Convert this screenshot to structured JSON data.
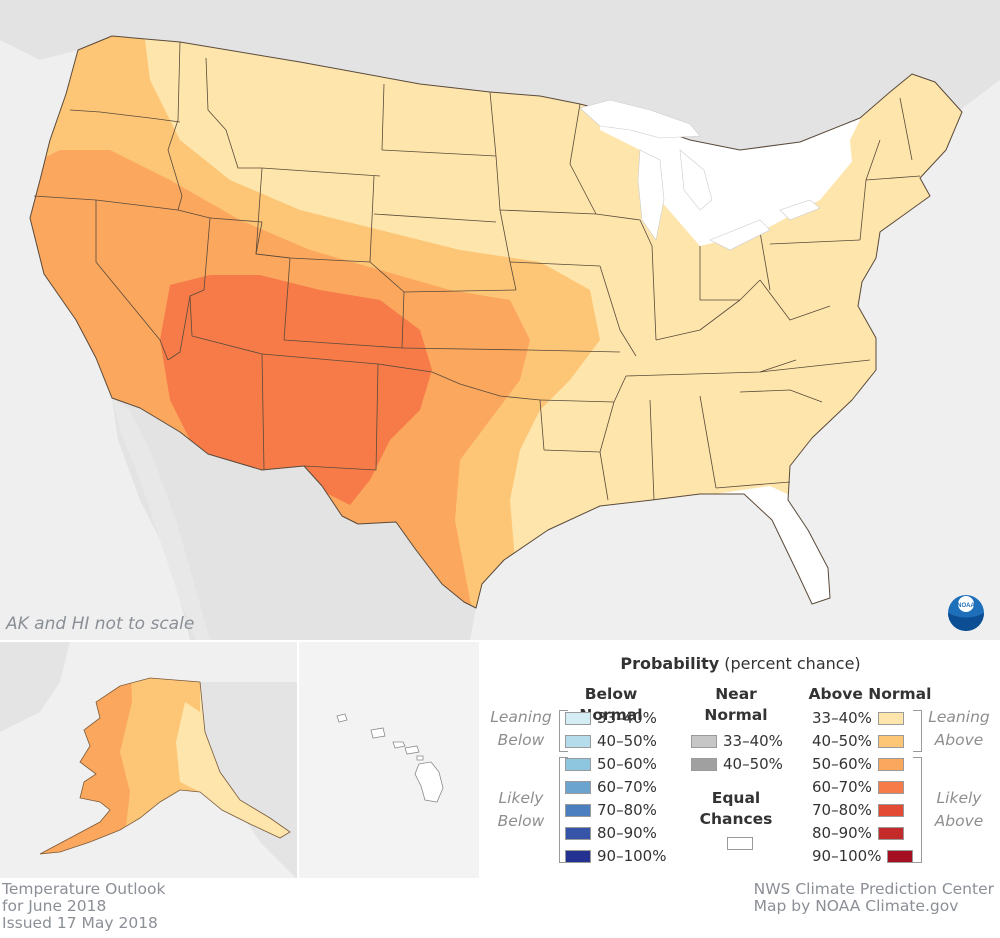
{
  "map_note": "AK and HI not to scale",
  "legend": {
    "title_bold": "Probability",
    "title_rest": " (percent chance)",
    "below_header": "Below Normal",
    "near_header_line1": "Near",
    "near_header_line2": "Normal",
    "above_header": "Above Normal",
    "equal_line1": "Equal",
    "equal_line2": "Chances",
    "leaning_below_1": "Leaning",
    "leaning_below_2": "Below",
    "likely_below_1": "Likely",
    "likely_below_2": "Below",
    "leaning_above_1": "Leaning",
    "leaning_above_2": "Above",
    "likely_above_1": "Likely",
    "likely_above_2": "Above",
    "below": [
      {
        "label": "33–40%",
        "color": "#d4edf5"
      },
      {
        "label": "40–50%",
        "color": "#b4dcea"
      },
      {
        "label": "50–60%",
        "color": "#8ec6df"
      },
      {
        "label": "60–70%",
        "color": "#6aa4cf"
      },
      {
        "label": "70–80%",
        "color": "#4c7fbf"
      },
      {
        "label": "80–90%",
        "color": "#3655a9"
      },
      {
        "label": "90–100%",
        "color": "#233290"
      }
    ],
    "near": [
      {
        "label": "33–40%",
        "color": "#c6c6c6"
      },
      {
        "label": "40–50%",
        "color": "#a0a0a0"
      }
    ],
    "above": [
      {
        "label": "33–40%",
        "color": "#fde5ab"
      },
      {
        "label": "40–50%",
        "color": "#fdc676"
      },
      {
        "label": "50–60%",
        "color": "#fba75e"
      },
      {
        "label": "60–70%",
        "color": "#f67b48"
      },
      {
        "label": "70–80%",
        "color": "#e44b35"
      },
      {
        "label": "80–90%",
        "color": "#c52a2b"
      },
      {
        "label": "90–100%",
        "color": "#a40f22"
      }
    ],
    "equal_color": "#ffffff"
  },
  "footer_left": [
    "Temperature Outlook",
    "for June 2018",
    "Issued 17 May 2018"
  ],
  "footer_right": [
    "NWS Climate Prediction Center",
    "Map by NOAA Climate.gov"
  ],
  "logo_text": "NOAA",
  "colors": {
    "background_land": "#e9e9e9",
    "water": "#f3f3f3",
    "leaning_above_fill": "#fde5ab",
    "above_40_50_fill": "#fdc676",
    "above_50_60_fill": "#fba75e",
    "above_60_70_fill": "#f67b48",
    "state_border": "#5a4a3a"
  }
}
